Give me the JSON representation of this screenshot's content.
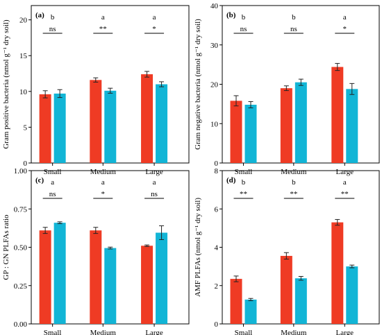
{
  "colors": {
    "small_plot": "#ef3b24",
    "large_plot": "#12b5d6",
    "frame": "#000000"
  },
  "chart_data": [
    {
      "type": "bar",
      "panel_label": "(a)",
      "ylabel": "Gram positive bacteria (nmol g⁻¹ dry soil)",
      "ylim": [
        0,
        22
      ],
      "yticks": [
        0,
        5,
        10,
        15,
        20
      ],
      "ytick_labels": [
        "0",
        "5",
        "10",
        "15",
        "20"
      ],
      "categories": [
        "Small",
        "Medium",
        "Large"
      ],
      "series": [
        {
          "color_key": "small_plot",
          "values": [
            9.6,
            11.6,
            12.4
          ],
          "errors": [
            0.5,
            0.3,
            0.4
          ]
        },
        {
          "color_key": "large_plot",
          "values": [
            9.7,
            10.1,
            11.0
          ],
          "errors": [
            0.55,
            0.35,
            0.35
          ]
        }
      ],
      "letters": [
        "b",
        "a",
        "a"
      ],
      "significance": [
        "ns",
        "**",
        "*"
      ]
    },
    {
      "type": "bar",
      "panel_label": "(b)",
      "ylabel": "Gram negative bacteria (nmol g⁻¹ dry soil)",
      "ylim": [
        0,
        40
      ],
      "yticks": [
        0,
        10,
        20,
        30,
        40
      ],
      "ytick_labels": [
        "0",
        "10",
        "20",
        "30",
        "40"
      ],
      "categories": [
        "Small",
        "Medium",
        "Large"
      ],
      "series": [
        {
          "color_key": "small_plot",
          "values": [
            15.8,
            19.0,
            24.4
          ],
          "errors": [
            1.3,
            0.6,
            0.9
          ]
        },
        {
          "color_key": "large_plot",
          "values": [
            14.8,
            20.5,
            18.8
          ],
          "errors": [
            0.8,
            0.8,
            1.4
          ]
        }
      ],
      "letters": [
        "b",
        "b",
        "a"
      ],
      "significance": [
        "ns",
        "ns",
        "*"
      ]
    },
    {
      "type": "bar",
      "panel_label": "(c)",
      "ylabel": "GP : GN PLFAs ratio",
      "ylim": [
        0,
        1.0
      ],
      "yticks": [
        0,
        0.25,
        0.5,
        0.75,
        1.0
      ],
      "ytick_labels": [
        "0.00",
        "0.25",
        "0.50",
        "0.75",
        "1.00"
      ],
      "categories": [
        "Small",
        "Medium",
        "Large"
      ],
      "series": [
        {
          "color_key": "small_plot",
          "values": [
            0.61,
            0.61,
            0.51
          ],
          "errors": [
            0.02,
            0.02,
            0.005
          ]
        },
        {
          "color_key": "large_plot",
          "values": [
            0.66,
            0.495,
            0.595
          ],
          "errors": [
            0.006,
            0.006,
            0.045
          ]
        }
      ],
      "letters": [
        "a",
        "a",
        "a"
      ],
      "significance": [
        "ns",
        "*",
        "ns"
      ]
    },
    {
      "type": "bar",
      "panel_label": "(d)",
      "ylabel": "AMF PLFAs (nmol g⁻¹ dry soil)",
      "ylim": [
        0,
        8
      ],
      "yticks": [
        0,
        2,
        4,
        6,
        8
      ],
      "ytick_labels": [
        "0",
        "2",
        "4",
        "6",
        "8"
      ],
      "categories": [
        "Small",
        "Medium",
        "Large"
      ],
      "series": [
        {
          "color_key": "small_plot",
          "values": [
            2.35,
            3.55,
            5.3
          ],
          "errors": [
            0.15,
            0.17,
            0.15
          ]
        },
        {
          "color_key": "large_plot",
          "values": [
            1.27,
            2.38,
            3.0
          ],
          "errors": [
            0.06,
            0.1,
            0.07
          ]
        }
      ],
      "letters": [
        "b",
        "b",
        "a"
      ],
      "significance": [
        "**",
        "**",
        "**"
      ]
    }
  ]
}
